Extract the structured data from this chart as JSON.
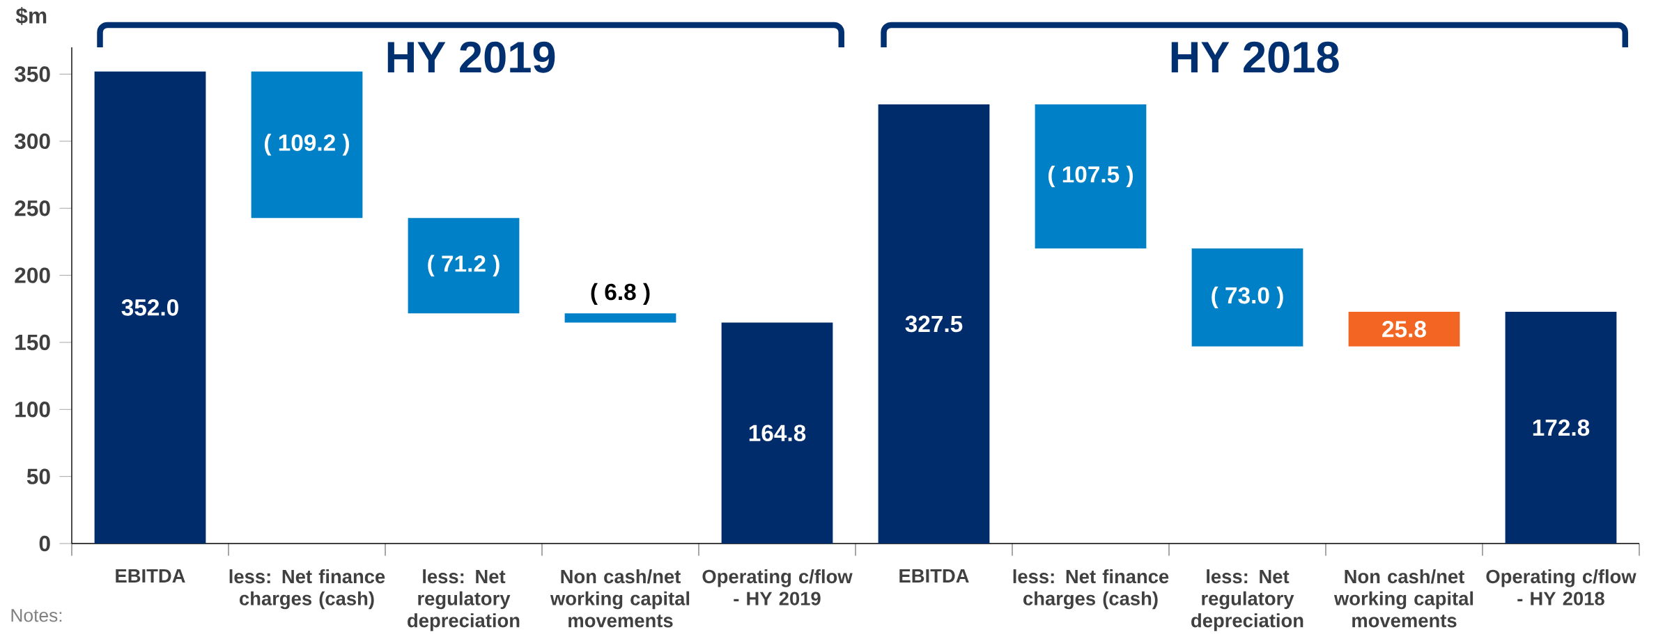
{
  "chart_data": {
    "type": "bar",
    "ylabel": "$m",
    "categories": [
      "EBITDA",
      "less: Net finance charges (cash)",
      "less: Net regulatory depreciation",
      "Non cash/net working capital movements",
      "Operating c/flow - HY 2019",
      "EBITDA",
      "less: Net finance charges (cash)",
      "less: Net regulatory depreciation",
      "Non cash/net working capital movements",
      "Operating c/flow - HY 2018"
    ],
    "values": [
      352.0,
      -109.2,
      -71.2,
      -6.8,
      164.8,
      327.5,
      -107.5,
      -73.0,
      25.8,
      172.8
    ],
    "base": [
      0,
      352.0,
      242.8,
      171.6,
      0,
      0,
      327.5,
      220.0,
      147.0,
      0
    ],
    "colors": [
      "#002c6c",
      "#0080c6",
      "#0080c6",
      "#0080c6",
      "#002c6c",
      "#002c6c",
      "#0080c6",
      "#0080c6",
      "#f26522",
      "#002c6c"
    ],
    "value_labels": [
      "352.0",
      "( 109.2 )",
      "( 71.2 )",
      "( 6.8 )",
      "164.8",
      "327.5",
      "( 107.5 )",
      "( 73.0 )",
      "25.8",
      "172.8"
    ],
    "ylim": [
      0,
      370
    ],
    "yticks": [
      0,
      50,
      100,
      150,
      200,
      250,
      300,
      350
    ],
    "annotations": [
      "HY 2019",
      "HY 2018",
      "Notes:"
    ]
  }
}
